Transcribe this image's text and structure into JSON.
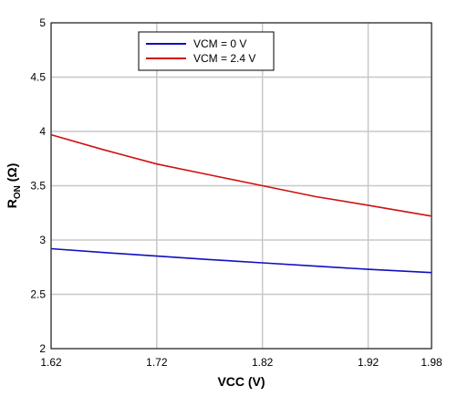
{
  "chart_data": {
    "type": "line",
    "title": "",
    "xlabel": "VCC (V)",
    "ylabel_main": "R",
    "ylabel_sub": "ON",
    "ylabel_unit": " (Ω)",
    "xlim": [
      1.62,
      1.98
    ],
    "ylim": [
      2,
      5
    ],
    "xticks": [
      1.62,
      1.72,
      1.82,
      1.92,
      1.98
    ],
    "xtick_labels": [
      "1.62",
      "1.72",
      "1.82",
      "1.92",
      "1.98"
    ],
    "yticks": [
      2,
      2.5,
      3,
      3.5,
      4,
      4.5,
      5
    ],
    "ytick_labels": [
      "2",
      "2.5",
      "3",
      "3.5",
      "4",
      "4.5",
      "5"
    ],
    "grid": true,
    "legend_position": "top-left",
    "series": [
      {
        "name": "VCM = 0 V",
        "color": "#1010c0",
        "x": [
          1.62,
          1.67,
          1.72,
          1.77,
          1.82,
          1.87,
          1.92,
          1.98
        ],
        "y": [
          2.92,
          2.885,
          2.852,
          2.82,
          2.79,
          2.76,
          2.73,
          2.7
        ]
      },
      {
        "name": "VCM = 2.4 V",
        "color": "#d01010",
        "x": [
          1.62,
          1.67,
          1.72,
          1.77,
          1.82,
          1.87,
          1.92,
          1.98
        ],
        "y": [
          3.97,
          3.83,
          3.7,
          3.6,
          3.5,
          3.4,
          3.32,
          3.22
        ]
      }
    ]
  }
}
